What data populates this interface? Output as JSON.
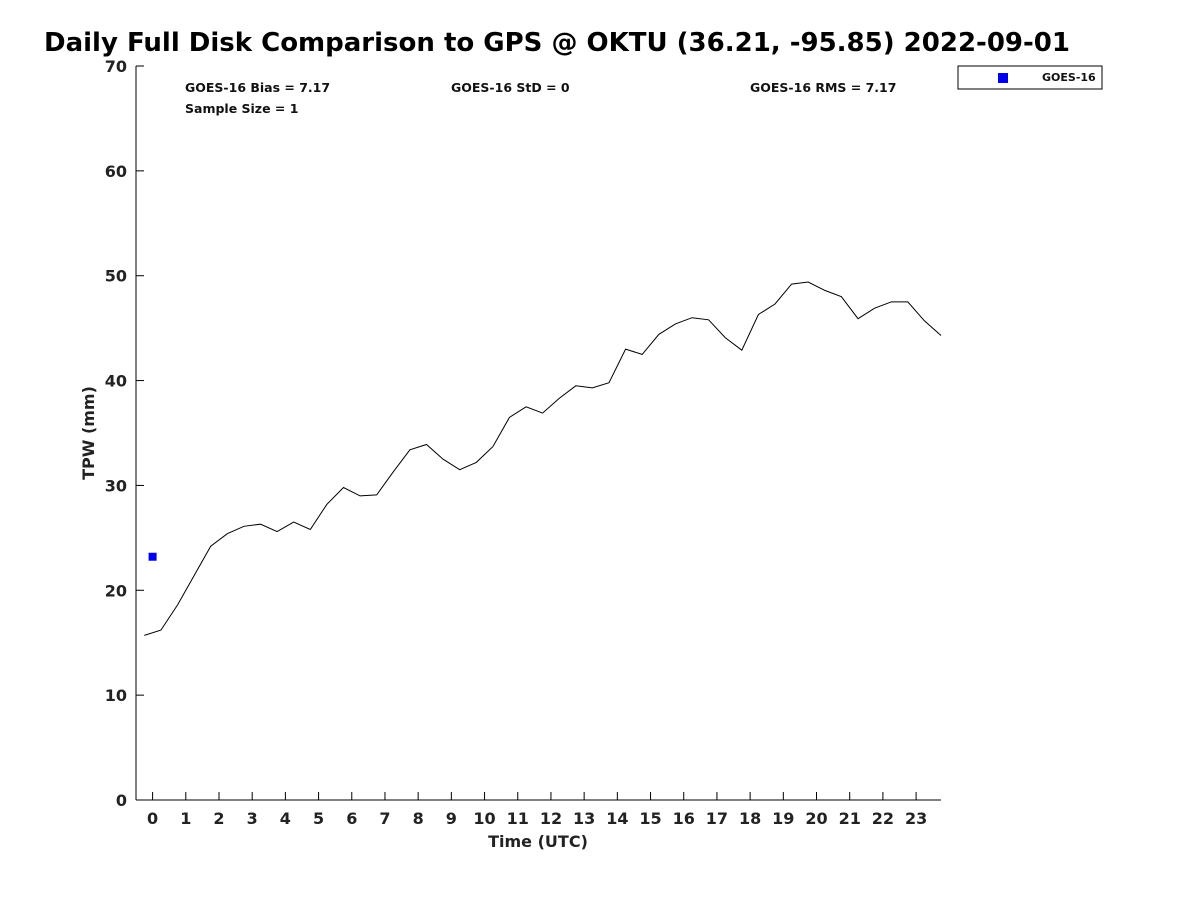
{
  "chart_data": {
    "type": "line",
    "title": "Daily Full Disk Comparison to GPS @ OKTU (36.21, -95.85) 2022-09-01",
    "xlabel": "Time (UTC)",
    "ylabel": "TPW (mm)",
    "xlim": [
      -0.5,
      23.75
    ],
    "ylim": [
      0,
      70
    ],
    "x_ticks": [
      0,
      1,
      2,
      3,
      4,
      5,
      6,
      7,
      8,
      9,
      10,
      11,
      12,
      13,
      14,
      15,
      16,
      17,
      18,
      19,
      20,
      21,
      22,
      23
    ],
    "y_ticks": [
      0,
      10,
      20,
      30,
      40,
      50,
      60,
      70
    ],
    "grid": false,
    "legend_position": "top-right",
    "series": [
      {
        "style": "line",
        "color": "#000000",
        "points": [
          [
            -0.25,
            15.7
          ],
          [
            0.25,
            16.2
          ],
          [
            0.75,
            18.6
          ],
          [
            1.25,
            21.4
          ],
          [
            1.75,
            24.2
          ],
          [
            2.25,
            25.4
          ],
          [
            2.75,
            26.1
          ],
          [
            3.25,
            26.3
          ],
          [
            3.75,
            25.6
          ],
          [
            4.25,
            26.5
          ],
          [
            4.75,
            25.8
          ],
          [
            5.25,
            28.2
          ],
          [
            5.75,
            29.8
          ],
          [
            6.25,
            29.0
          ],
          [
            6.75,
            29.1
          ],
          [
            7.25,
            31.3
          ],
          [
            7.75,
            33.4
          ],
          [
            8.25,
            33.9
          ],
          [
            8.75,
            32.5
          ],
          [
            9.25,
            31.5
          ],
          [
            9.75,
            32.2
          ],
          [
            10.25,
            33.7
          ],
          [
            10.75,
            36.5
          ],
          [
            11.25,
            37.5
          ],
          [
            11.75,
            36.9
          ],
          [
            12.25,
            38.3
          ],
          [
            12.75,
            39.5
          ],
          [
            13.25,
            39.3
          ],
          [
            13.75,
            39.8
          ],
          [
            14.25,
            43.0
          ],
          [
            14.75,
            42.5
          ],
          [
            15.25,
            44.4
          ],
          [
            15.75,
            45.4
          ],
          [
            16.25,
            46.0
          ],
          [
            16.75,
            45.8
          ],
          [
            17.25,
            44.1
          ],
          [
            17.75,
            42.9
          ],
          [
            18.25,
            46.3
          ],
          [
            18.75,
            47.3
          ],
          [
            19.25,
            49.2
          ],
          [
            19.75,
            49.4
          ],
          [
            20.25,
            48.6
          ],
          [
            20.75,
            48.0
          ],
          [
            21.25,
            45.9
          ],
          [
            21.75,
            46.9
          ],
          [
            22.25,
            47.5
          ],
          [
            22.75,
            47.5
          ],
          [
            23.25,
            45.7
          ],
          [
            23.75,
            44.3
          ]
        ]
      },
      {
        "name": "GOES-16",
        "style": "marker",
        "color": "#0000ee",
        "points": [
          [
            0.0,
            23.2
          ]
        ]
      }
    ],
    "annotations": {
      "bias": "GOES-16 Bias = 7.17",
      "std": "GOES-16 StD = 0",
      "rms": "GOES-16 RMS = 7.17",
      "sample": "Sample Size = 1"
    },
    "legend": [
      "GOES-16"
    ]
  }
}
